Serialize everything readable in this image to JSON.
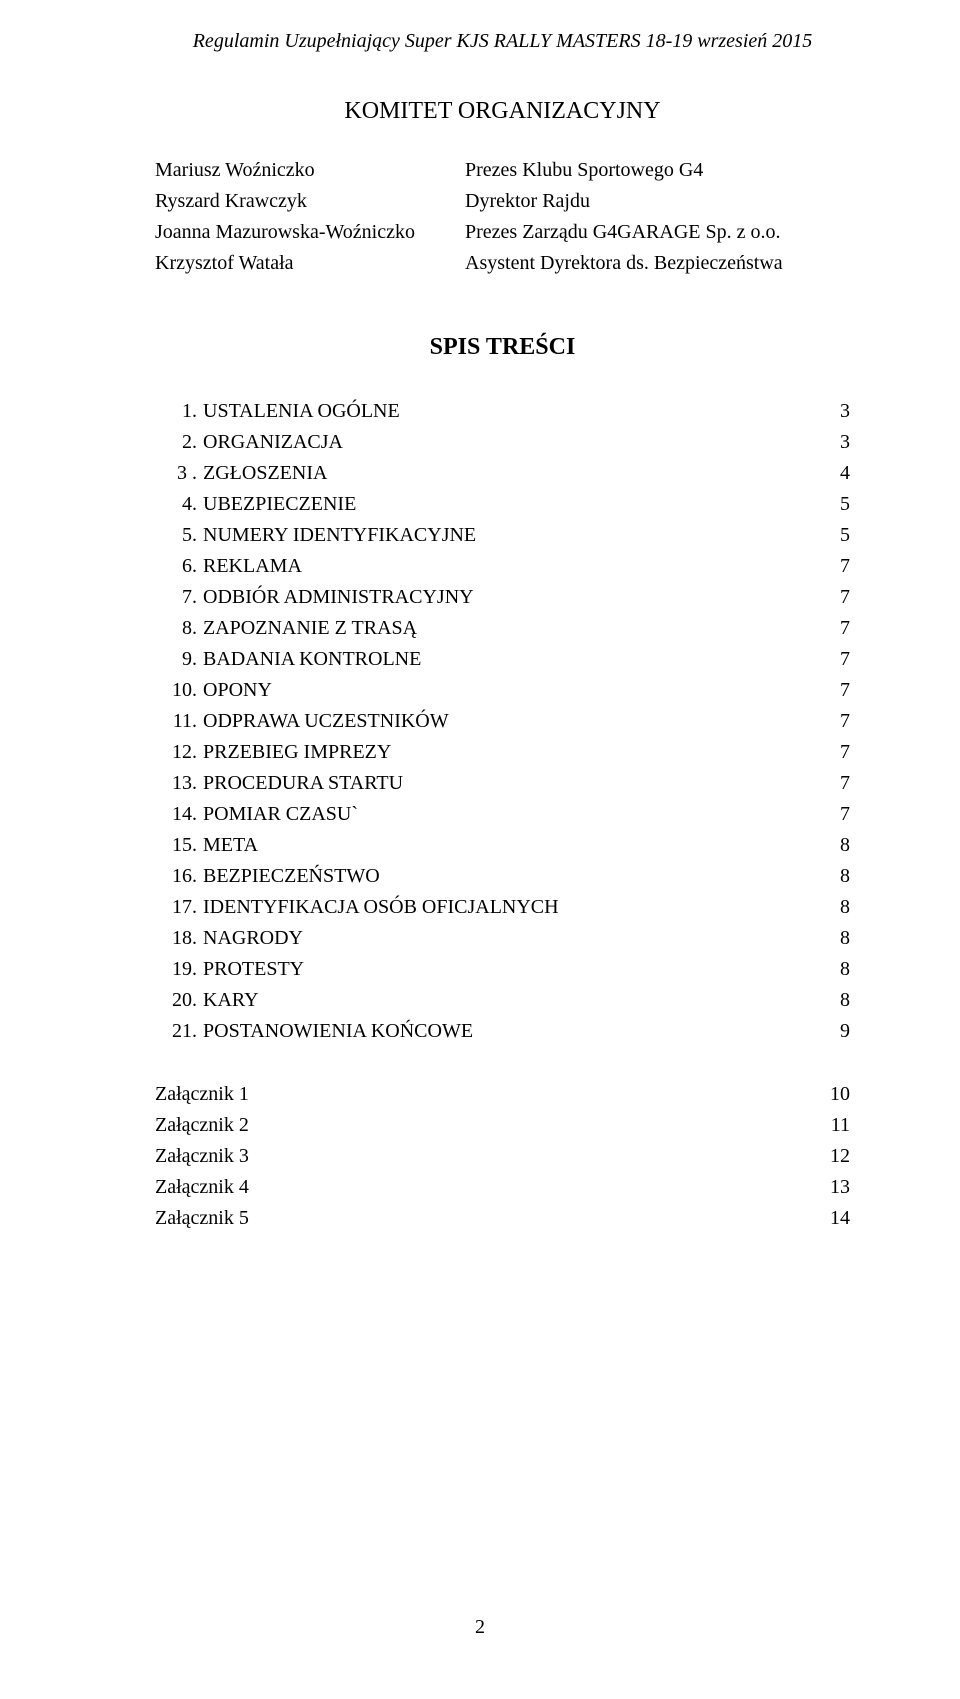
{
  "header": "Regulamin  Uzupełniający Super KJS RALLY MASTERS 18-19 wrzesień 2015",
  "committee_heading": "KOMITET ORGANIZACYJNY",
  "committee": [
    {
      "name": "Mariusz Woźniczko",
      "role": "Prezes Klubu Sportowego G4"
    },
    {
      "name": "Ryszard Krawczyk",
      "role": " Dyrektor Rajdu"
    },
    {
      "name": "Joanna Mazurowska-Woźniczko",
      "role": "Prezes Zarządu G4GARAGE Sp. z o.o."
    },
    {
      "name": "Krzysztof Watała",
      "role": "Asystent Dyrektora ds. Bezpieczeństwa"
    }
  ],
  "toc_heading": "SPIS  TREŚCI",
  "toc": [
    {
      "num": "1.",
      "label": "USTALENIA OGÓLNE",
      "page": "3"
    },
    {
      "num": "2.",
      "label": "ORGANIZACJA",
      "page": "3"
    },
    {
      "num": "3 .",
      "label": "ZGŁOSZENIA",
      "page": "4"
    },
    {
      "num": "4.",
      "label": "UBEZPIECZENIE",
      "page": "5"
    },
    {
      "num": "5.",
      "label": "NUMERY  IDENTYFIKACYJNE",
      "page": "5"
    },
    {
      "num": "6.",
      "label": "REKLAMA",
      "page": "7"
    },
    {
      "num": "7.",
      "label": "ODBIÓR  ADMINISTRACYJNY",
      "page": "7"
    },
    {
      "num": "8.",
      "label": "ZAPOZNANIE  Z  TRASĄ",
      "page": "7"
    },
    {
      "num": "9.",
      "label": "BADANIA  KONTROLNE",
      "page": "7"
    },
    {
      "num": "10.",
      "label": "OPONY",
      "page": "7"
    },
    {
      "num": "11.",
      "label": "ODPRAWA  UCZESTNIKÓW",
      "page": "7"
    },
    {
      "num": "12.",
      "label": "PRZEBIEG  IMPREZY",
      "page": "7"
    },
    {
      "num": "13.",
      "label": "PROCEDURA  STARTU",
      "page": "7"
    },
    {
      "num": "14.",
      "label": "POMIAR CZASU`",
      "page": "7"
    },
    {
      "num": "15.",
      "label": "META",
      "page": "8"
    },
    {
      "num": "16.",
      "label": "BEZPIECZEŃSTWO",
      "page": "8"
    },
    {
      "num": "17.",
      "label": "IDENTYFIKACJA  OSÓB  OFICJALNYCH",
      "page": "8"
    },
    {
      "num": "18.",
      "label": "NAGRODY",
      "page": "8"
    },
    {
      "num": "19.",
      "label": "PROTESTY",
      "page": "8"
    },
    {
      "num": "20.",
      "label": "KARY",
      "page": "8"
    },
    {
      "num": "21.",
      "label": "POSTANOWIENIA  KOŃCOWE",
      "page": "9"
    }
  ],
  "attachments": [
    {
      "label": "Załącznik 1",
      "page": "10"
    },
    {
      "label": "Załącznik 2",
      "page": "11"
    },
    {
      "label": "Załącznik 3",
      "page": "12"
    },
    {
      "label": "Załącznik 4",
      "page": "13"
    },
    {
      "label": "Załącznik 5",
      "page": "14"
    }
  ],
  "page_number": "2"
}
